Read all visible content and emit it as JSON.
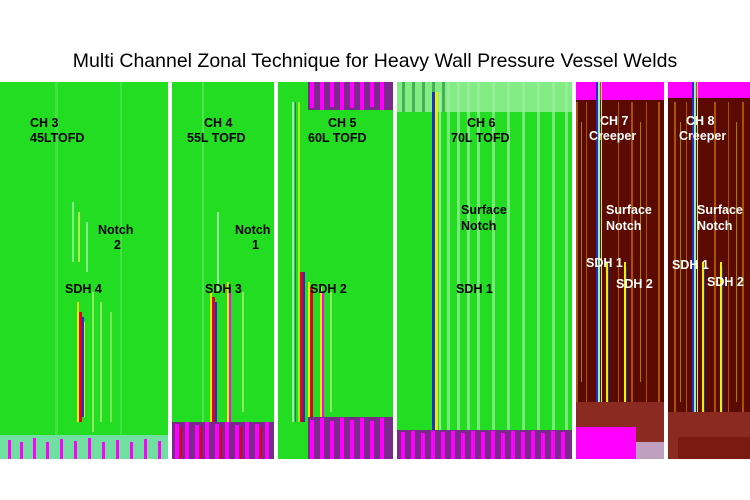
{
  "title": "Multi Channel Zonal Technique for Heavy Wall Pressure Vessel Welds",
  "colors": {
    "green": "#22dd22",
    "light_green": "#9ef09e",
    "yellow": "#e6f200",
    "red": "#e0001c",
    "magenta": "#ff00ff",
    "blue": "#2030d0",
    "dark_red": "#5a0a00",
    "orange": "#d07000"
  },
  "panels": [
    {
      "channel": "CH 3",
      "probe": "45LTOFD",
      "notch": [
        "Notch",
        "2"
      ],
      "sdh": "SDH 4"
    },
    {
      "channel": "CH 4",
      "probe": "55L TOFD",
      "notch": [
        "Notch",
        "1"
      ],
      "sdh": "SDH 3"
    },
    {
      "channel": "CH 5",
      "probe": "60L TOFD",
      "sdh": "SDH 2"
    },
    {
      "channel": "CH 6",
      "probe": "70L TOFD",
      "notch": [
        "Surface",
        "Notch"
      ],
      "sdh": "SDH 1"
    },
    {
      "channel": "CH 7",
      "probe": "Creeper",
      "notch": [
        "Surface",
        "Notch"
      ],
      "sdh": "SDH 1",
      "sdh2": "SDH 2"
    },
    {
      "channel": "CH 8",
      "probe": "Creeper",
      "notch": [
        "Surface",
        "Notch"
      ],
      "sdh": "SDH 1",
      "sdh2": "SDH 2"
    }
  ]
}
